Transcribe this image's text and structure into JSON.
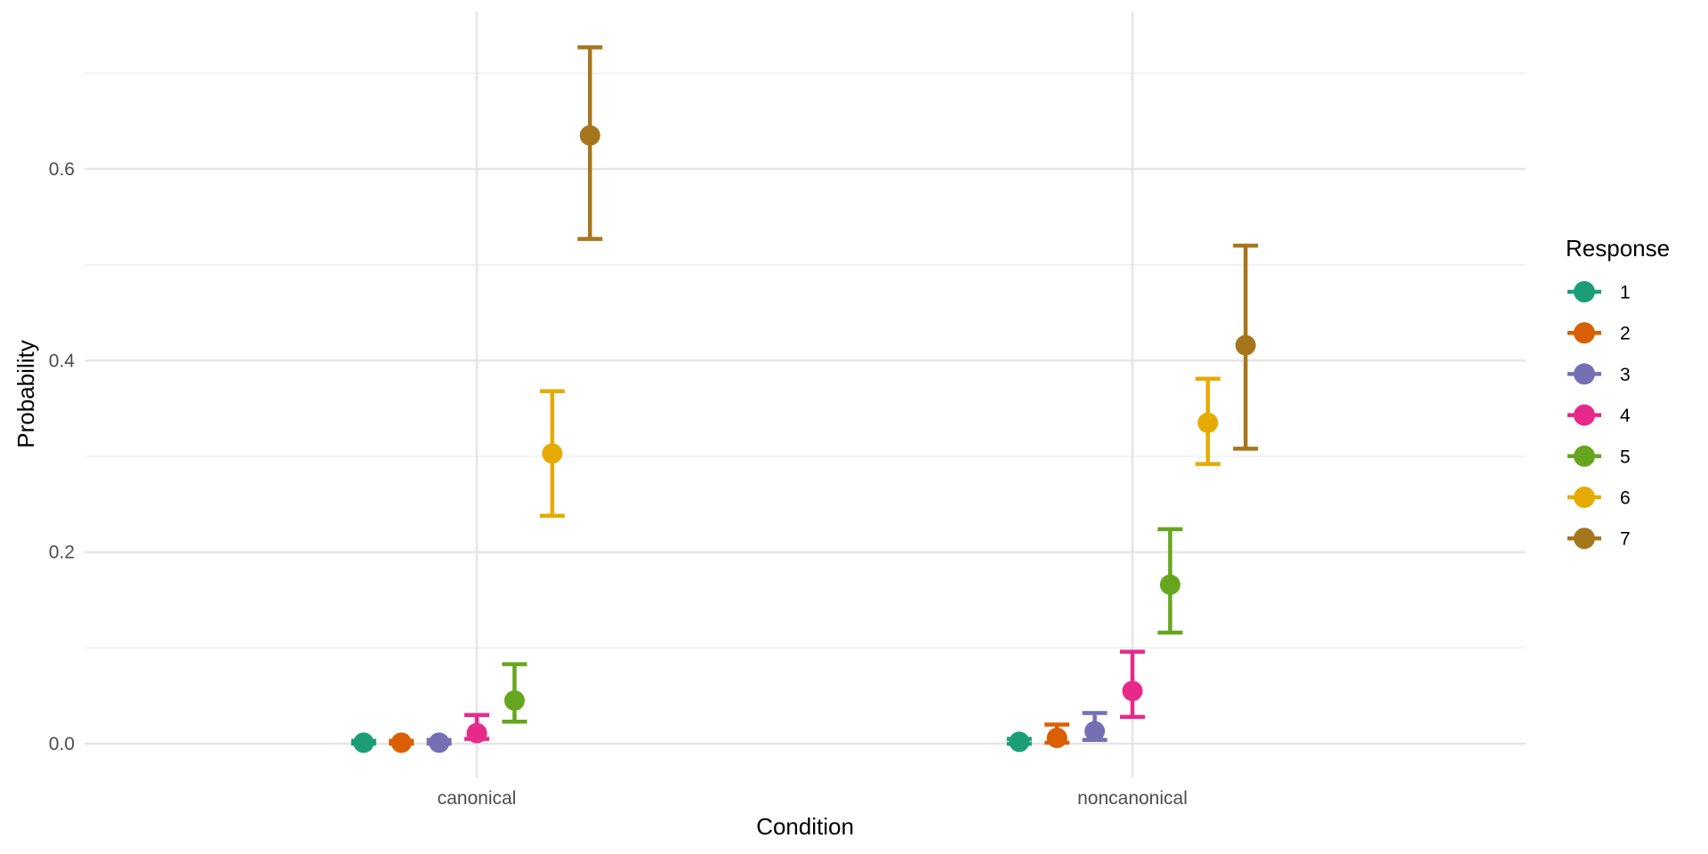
{
  "chart_data": {
    "type": "pointrange",
    "title": "",
    "xlabel": "Condition",
    "ylabel": "Probability",
    "legend_title": "Response",
    "legend_position": "right",
    "grid": "major+minor",
    "conditions": [
      "canonical",
      "noncanonical"
    ],
    "y_axis": {
      "ticks": [
        0.0,
        0.2,
        0.4,
        0.6
      ],
      "tick_labels": [
        "0.0",
        "0.2",
        "0.4",
        "0.6"
      ],
      "minor_gridlines": [
        0.1,
        0.3,
        0.5,
        0.7
      ],
      "range": [
        -0.035,
        0.765
      ]
    },
    "responses": [
      {
        "label": "1",
        "color": "#1B9E77",
        "values": {
          "canonical": {
            "mean": 0.001,
            "lower": 0.0,
            "upper": 0.003
          },
          "noncanonical": {
            "mean": 0.002,
            "lower": 0.0,
            "upper": 0.005
          }
        }
      },
      {
        "label": "2",
        "color": "#D95F02",
        "values": {
          "canonical": {
            "mean": 0.001,
            "lower": 0.0,
            "upper": 0.003
          },
          "noncanonical": {
            "mean": 0.006,
            "lower": 0.001,
            "upper": 0.02
          }
        }
      },
      {
        "label": "3",
        "color": "#7570B3",
        "values": {
          "canonical": {
            "mean": 0.001,
            "lower": 0.0,
            "upper": 0.004
          },
          "noncanonical": {
            "mean": 0.013,
            "lower": 0.004,
            "upper": 0.032
          }
        }
      },
      {
        "label": "4",
        "color": "#E7298A",
        "values": {
          "canonical": {
            "mean": 0.011,
            "lower": 0.005,
            "upper": 0.03
          },
          "noncanonical": {
            "mean": 0.055,
            "lower": 0.028,
            "upper": 0.096
          }
        }
      },
      {
        "label": "5",
        "color": "#66A61E",
        "values": {
          "canonical": {
            "mean": 0.045,
            "lower": 0.023,
            "upper": 0.083
          },
          "noncanonical": {
            "mean": 0.166,
            "lower": 0.116,
            "upper": 0.224
          }
        }
      },
      {
        "label": "6",
        "color": "#E6AB02",
        "values": {
          "canonical": {
            "mean": 0.303,
            "lower": 0.238,
            "upper": 0.368
          },
          "noncanonical": {
            "mean": 0.335,
            "lower": 0.292,
            "upper": 0.381
          }
        }
      },
      {
        "label": "7",
        "color": "#A6761D",
        "values": {
          "canonical": {
            "mean": 0.635,
            "lower": 0.527,
            "upper": 0.727
          },
          "noncanonical": {
            "mean": 0.416,
            "lower": 0.308,
            "upper": 0.52
          }
        }
      }
    ],
    "style_colors": {
      "grid_major": "#E4E4E4",
      "grid_minor": "#EFEFEF",
      "tick_label": "#4D4D4D",
      "axis_title": "#000000",
      "legend_text": "#000000",
      "background": "#FFFFFF"
    }
  }
}
